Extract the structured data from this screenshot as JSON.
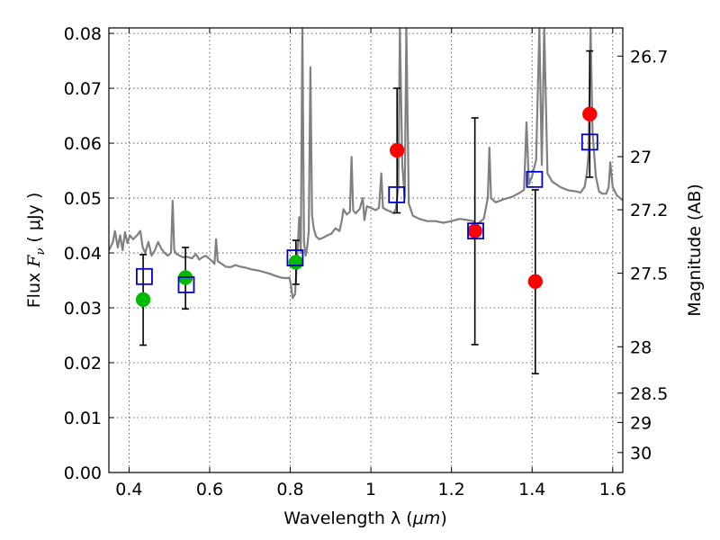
{
  "chart_data": {
    "type": "scatter",
    "xlabel_main": "Wavelength  λ (",
    "xlabel_unit": "μm",
    "xlabel_end": ")",
    "ylabel_main": "Flux  ",
    "ylabel_math": "F",
    "ylabel_sub": "ν",
    "ylabel_unit": "  ( μJy )",
    "y2label": "Magnitude (AB)",
    "xlim": [
      0.35,
      1.625
    ],
    "ylim": [
      0.0,
      0.081
    ],
    "grid": true,
    "x_ticks": [
      0.4,
      0.6,
      0.8,
      1.0,
      1.2,
      1.4,
      1.6
    ],
    "x_tick_labels": [
      "0.4",
      "0.6",
      "0.8",
      "1",
      "1.2",
      "1.4",
      "1.6"
    ],
    "y_ticks": [
      0.0,
      0.01,
      0.02,
      0.03,
      0.04,
      0.05,
      0.06,
      0.07,
      0.08
    ],
    "y_tick_labels": [
      "0.00",
      "0.01",
      "0.02",
      "0.03",
      "0.04",
      "0.05",
      "0.06",
      "0.07",
      "0.08"
    ],
    "mag_ticks": [
      26.7,
      27,
      27.2,
      27.5,
      28,
      28.5,
      29,
      30
    ],
    "mag_tick_labels": [
      "26.7",
      "27",
      "27.2",
      "27.5",
      "28",
      "28.5",
      "29",
      "30"
    ],
    "colors": {
      "spectrum": "#808080",
      "observed_red": "#ff0000",
      "observed_green": "#00bb00",
      "model": "#0000cc",
      "errorbar": "#000000"
    },
    "observed": [
      {
        "x": 0.435,
        "y": 0.0315,
        "yerr_low": 0.0232,
        "yerr_high": 0.0397,
        "color": "green"
      },
      {
        "x": 0.54,
        "y": 0.0355,
        "yerr_low": 0.0298,
        "yerr_high": 0.041,
        "color": "green"
      },
      {
        "x": 0.814,
        "y": 0.0383,
        "yerr_low": 0.0343,
        "yerr_high": 0.0423,
        "color": "green"
      },
      {
        "x": 1.065,
        "y": 0.0587,
        "yerr_low": 0.0473,
        "yerr_high": 0.07,
        "color": "red"
      },
      {
        "x": 1.258,
        "y": 0.044,
        "yerr_low": 0.0233,
        "yerr_high": 0.0646,
        "color": "red"
      },
      {
        "x": 1.408,
        "y": 0.0348,
        "yerr_low": 0.018,
        "yerr_high": 0.0515,
        "color": "red"
      },
      {
        "x": 1.543,
        "y": 0.0653,
        "yerr_low": 0.0538,
        "yerr_high": 0.0768,
        "color": "red"
      }
    ],
    "model_points": [
      {
        "x": 0.438,
        "y": 0.0357
      },
      {
        "x": 0.542,
        "y": 0.0342
      },
      {
        "x": 0.812,
        "y": 0.0391
      },
      {
        "x": 1.064,
        "y": 0.0506
      },
      {
        "x": 1.26,
        "y": 0.044
      },
      {
        "x": 1.406,
        "y": 0.0534
      },
      {
        "x": 1.543,
        "y": 0.0602
      }
    ],
    "spectrum": [
      [
        0.35,
        0.0405
      ],
      [
        0.36,
        0.042
      ],
      [
        0.365,
        0.044
      ],
      [
        0.372,
        0.041
      ],
      [
        0.378,
        0.0432
      ],
      [
        0.384,
        0.0405
      ],
      [
        0.39,
        0.0438
      ],
      [
        0.396,
        0.0418
      ],
      [
        0.402,
        0.0432
      ],
      [
        0.41,
        0.0425
      ],
      [
        0.42,
        0.0432
      ],
      [
        0.428,
        0.044
      ],
      [
        0.434,
        0.041
      ],
      [
        0.44,
        0.04
      ],
      [
        0.448,
        0.042
      ],
      [
        0.456,
        0.0395
      ],
      [
        0.464,
        0.0405
      ],
      [
        0.472,
        0.042
      ],
      [
        0.48,
        0.0408
      ],
      [
        0.488,
        0.04
      ],
      [
        0.496,
        0.0395
      ],
      [
        0.504,
        0.04
      ],
      [
        0.508,
        0.0495
      ],
      [
        0.512,
        0.0405
      ],
      [
        0.518,
        0.0398
      ],
      [
        0.526,
        0.0395
      ],
      [
        0.534,
        0.0392
      ],
      [
        0.544,
        0.0393
      ],
      [
        0.556,
        0.039
      ],
      [
        0.566,
        0.0398
      ],
      [
        0.574,
        0.0388
      ],
      [
        0.582,
        0.0392
      ],
      [
        0.59,
        0.0395
      ],
      [
        0.598,
        0.039
      ],
      [
        0.606,
        0.0385
      ],
      [
        0.612,
        0.038
      ],
      [
        0.616,
        0.0425
      ],
      [
        0.62,
        0.0385
      ],
      [
        0.63,
        0.038
      ],
      [
        0.64,
        0.0375
      ],
      [
        0.652,
        0.0374
      ],
      [
        0.664,
        0.0378
      ],
      [
        0.676,
        0.0375
      ],
      [
        0.69,
        0.0373
      ],
      [
        0.704,
        0.037
      ],
      [
        0.72,
        0.0368
      ],
      [
        0.736,
        0.0365
      ],
      [
        0.75,
        0.0362
      ],
      [
        0.764,
        0.0358
      ],
      [
        0.778,
        0.0355
      ],
      [
        0.79,
        0.0354
      ],
      [
        0.798,
        0.0355
      ],
      [
        0.802,
        0.034
      ],
      [
        0.806,
        0.0318
      ],
      [
        0.812,
        0.0325
      ],
      [
        0.818,
        0.04
      ],
      [
        0.822,
        0.0465
      ],
      [
        0.826,
        0.04
      ],
      [
        0.83,
        0.081
      ],
      [
        0.834,
        0.042
      ],
      [
        0.838,
        0.0395
      ],
      [
        0.842,
        0.041
      ],
      [
        0.846,
        0.044
      ],
      [
        0.85,
        0.0738
      ],
      [
        0.854,
        0.047
      ],
      [
        0.858,
        0.0445
      ],
      [
        0.864,
        0.043
      ],
      [
        0.872,
        0.0425
      ],
      [
        0.882,
        0.0428
      ],
      [
        0.892,
        0.0432
      ],
      [
        0.902,
        0.0435
      ],
      [
        0.912,
        0.0445
      ],
      [
        0.922,
        0.044
      ],
      [
        0.928,
        0.046
      ],
      [
        0.932,
        0.048
      ],
      [
        0.94,
        0.047
      ],
      [
        0.948,
        0.0475
      ],
      [
        0.952,
        0.0575
      ],
      [
        0.956,
        0.0478
      ],
      [
        0.962,
        0.0472
      ],
      [
        0.972,
        0.048
      ],
      [
        0.98,
        0.05
      ],
      [
        0.984,
        0.046
      ],
      [
        0.99,
        0.0485
      ],
      [
        1.0,
        0.0482
      ],
      [
        1.012,
        0.0478
      ],
      [
        1.02,
        0.0482
      ],
      [
        1.026,
        0.0545
      ],
      [
        1.03,
        0.0482
      ],
      [
        1.04,
        0.0478
      ],
      [
        1.05,
        0.0475
      ],
      [
        1.056,
        0.0472
      ],
      [
        1.062,
        0.048
      ],
      [
        1.068,
        0.052
      ],
      [
        1.072,
        0.081
      ],
      [
        1.078,
        0.056
      ],
      [
        1.084,
        0.05
      ],
      [
        1.088,
        0.081
      ],
      [
        1.094,
        0.049
      ],
      [
        1.104,
        0.0468
      ],
      [
        1.12,
        0.0462
      ],
      [
        1.14,
        0.0458
      ],
      [
        1.16,
        0.0458
      ],
      [
        1.18,
        0.0455
      ],
      [
        1.2,
        0.0458
      ],
      [
        1.22,
        0.0462
      ],
      [
        1.24,
        0.046
      ],
      [
        1.254,
        0.0458
      ],
      [
        1.262,
        0.0452
      ],
      [
        1.27,
        0.0456
      ],
      [
        1.28,
        0.0462
      ],
      [
        1.29,
        0.05
      ],
      [
        1.294,
        0.0592
      ],
      [
        1.298,
        0.05
      ],
      [
        1.31,
        0.0492
      ],
      [
        1.33,
        0.0498
      ],
      [
        1.35,
        0.0502
      ],
      [
        1.37,
        0.051
      ],
      [
        1.38,
        0.0515
      ],
      [
        1.386,
        0.0638
      ],
      [
        1.392,
        0.0525
      ],
      [
        1.4,
        0.054
      ],
      [
        1.41,
        0.057
      ],
      [
        1.418,
        0.081
      ],
      [
        1.424,
        0.056
      ],
      [
        1.43,
        0.081
      ],
      [
        1.438,
        0.0545
      ],
      [
        1.45,
        0.053
      ],
      [
        1.47,
        0.052
      ],
      [
        1.49,
        0.0514
      ],
      [
        1.51,
        0.0512
      ],
      [
        1.52,
        0.051
      ],
      [
        1.53,
        0.052
      ],
      [
        1.536,
        0.0545
      ],
      [
        1.54,
        0.058
      ],
      [
        1.545,
        0.081
      ],
      [
        1.55,
        0.062
      ],
      [
        1.558,
        0.054
      ],
      [
        1.566,
        0.0512
      ],
      [
        1.574,
        0.0508
      ],
      [
        1.584,
        0.0508
      ],
      [
        1.59,
        0.052
      ],
      [
        1.594,
        0.0565
      ],
      [
        1.6,
        0.052
      ],
      [
        1.61,
        0.0505
      ],
      [
        1.625,
        0.0496
      ]
    ]
  }
}
